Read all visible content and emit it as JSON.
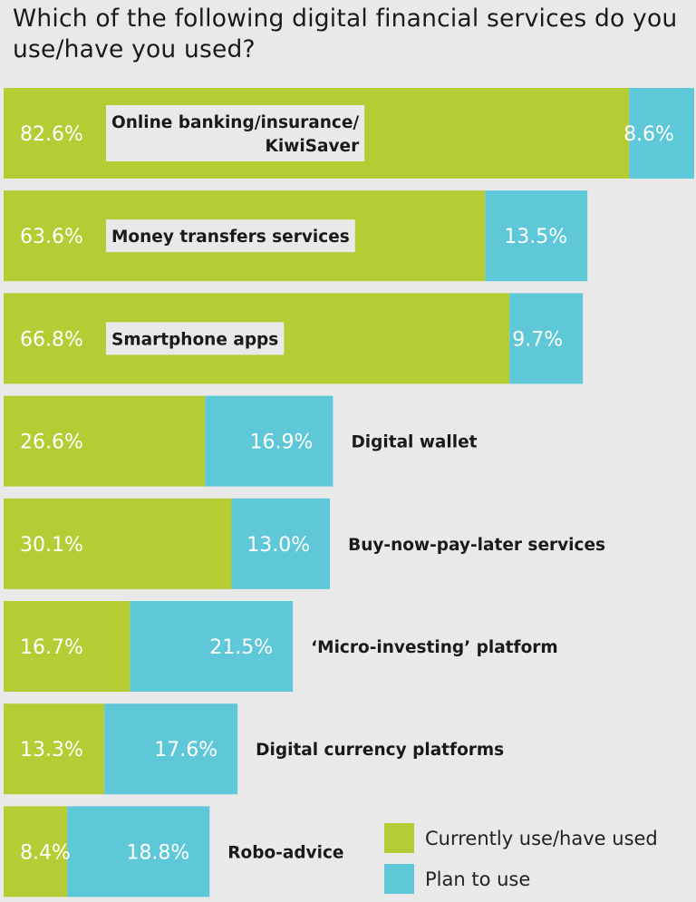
{
  "title": "Which of the following digital financial services do you use/have you used?",
  "colors": {
    "current": "#b5cc34",
    "plan": "#5ec8d8",
    "label_bg": "#e9e9ea",
    "background": "#e9e9ea"
  },
  "legend": [
    {
      "label": "Currently use/have used",
      "color": "#b5cc34"
    },
    {
      "label": "Plan to use",
      "color": "#5ec8d8"
    }
  ],
  "chart_data": {
    "type": "bar",
    "orientation": "horizontal",
    "stacked": true,
    "title": "Which of the following digital financial services do you use/have you used?",
    "categories": [
      "Online banking/insurance/ KiwiSaver",
      "Money transfers services",
      "Smartphone apps",
      "Digital wallet",
      "Buy-now-pay-later services",
      "‘Micro-investing’ platform",
      "Digital currency platforms",
      "Robo-advice"
    ],
    "series": [
      {
        "name": "Currently use/have used",
        "values": [
          82.6,
          63.6,
          66.8,
          26.6,
          30.1,
          16.7,
          13.3,
          8.4
        ],
        "labels": [
          "82.6%",
          "63.6%",
          "66.8%",
          "26.6%",
          "30.1%",
          "16.7%",
          "13.3%",
          "8.4%"
        ]
      },
      {
        "name": "Plan to use",
        "values": [
          8.6,
          13.5,
          9.7,
          16.9,
          13.0,
          21.5,
          17.6,
          18.8
        ],
        "labels": [
          "8.6%",
          "13.5%",
          "9.7%",
          "16.9%",
          "13.0%",
          "21.5%",
          "17.6%",
          "18.8%"
        ]
      }
    ],
    "legend_position": "bottom-right",
    "grid": false
  }
}
